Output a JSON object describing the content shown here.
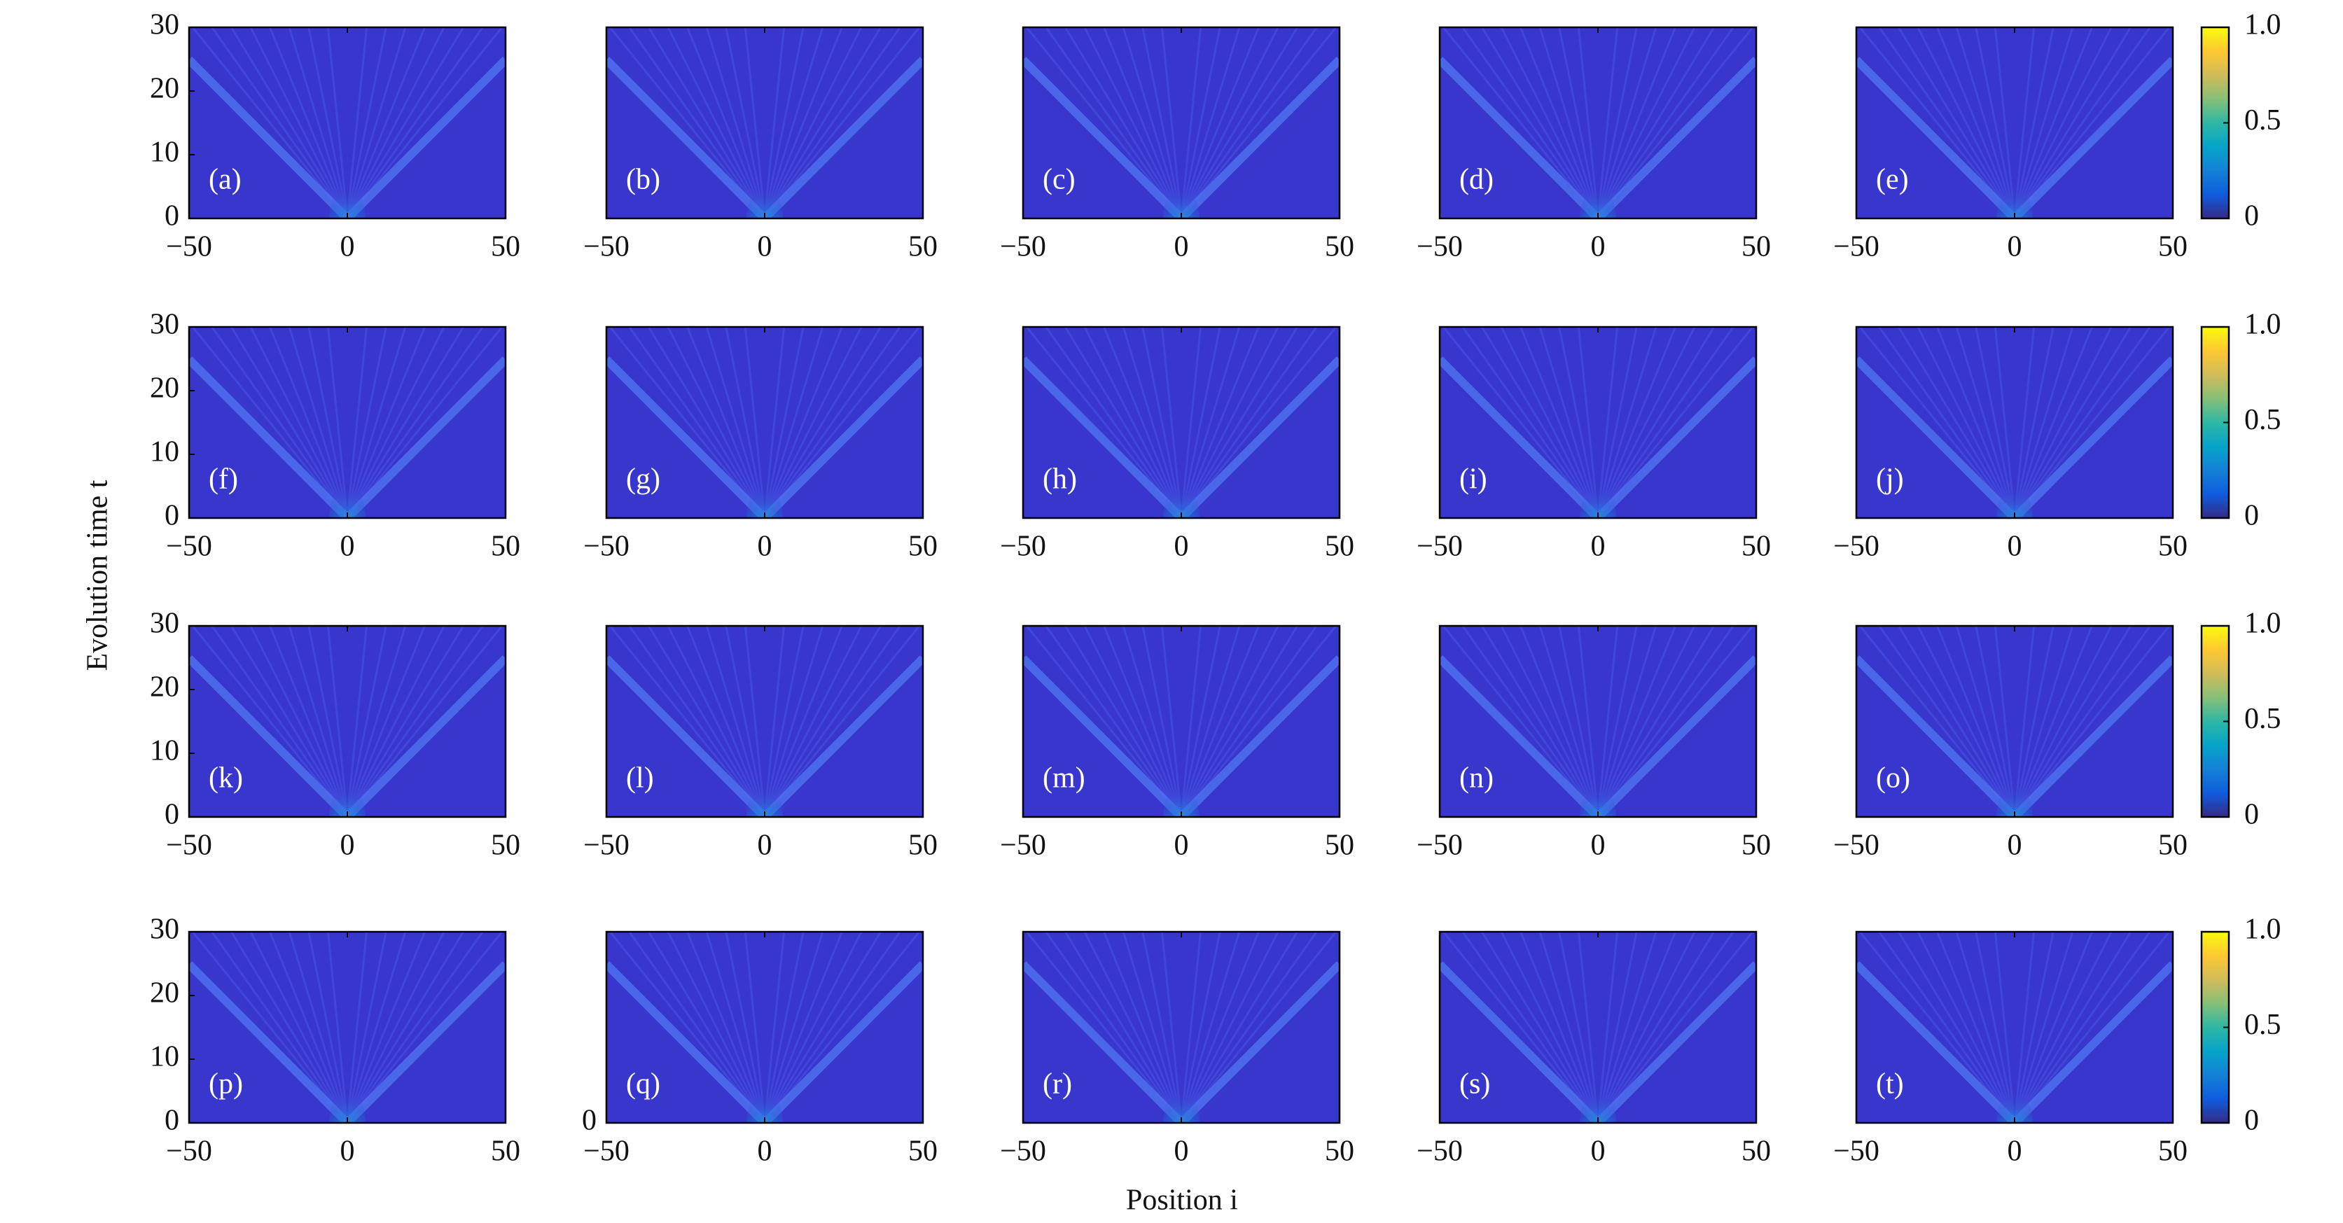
{
  "figure": {
    "xlabel": "Position i",
    "ylabel": "Evolution time t",
    "colormap": [
      "#352a87",
      "#0f5cdd",
      "#1481d6",
      "#06a4ca",
      "#2eb7a4",
      "#87bf77",
      "#d1bb59",
      "#fec832",
      "#f9fb0e"
    ]
  },
  "chart_data": [
    {
      "type": "heatmap",
      "label": "(a)",
      "xlim": [
        -50,
        50
      ],
      "ylim": [
        0,
        30
      ],
      "xticks": [
        {
          "value": -50,
          "label": "−50"
        },
        0,
        50
      ],
      "yticks": [
        0,
        10,
        20,
        30
      ]
    },
    {
      "type": "heatmap",
      "label": "(b)",
      "xlim": [
        -50,
        50
      ],
      "ylim": [
        0,
        30
      ],
      "xticks": [
        {
          "value": -50,
          "label": "−50"
        },
        0,
        50
      ]
    },
    {
      "type": "heatmap",
      "label": "(c)",
      "xlim": [
        -50,
        50
      ],
      "ylim": [
        0,
        30
      ],
      "xticks": [
        {
          "value": -50,
          "label": "−50"
        },
        0,
        50
      ]
    },
    {
      "type": "heatmap",
      "label": "(d)",
      "xlim": [
        -50,
        50
      ],
      "ylim": [
        0,
        30
      ],
      "xticks": [
        {
          "value": -50,
          "label": "−50"
        },
        0,
        50
      ]
    },
    {
      "type": "heatmap",
      "label": "(e)",
      "xlim": [
        -50,
        50
      ],
      "ylim": [
        0,
        30
      ],
      "xticks": [
        {
          "value": -50,
          "label": "−50"
        },
        0,
        50
      ]
    },
    {
      "type": "colorbar",
      "clim": [
        0,
        1
      ],
      "ticks": [
        0,
        0.5,
        {
          "value": 1,
          "label": "1.0"
        }
      ]
    },
    {
      "type": "heatmap",
      "label": "(f)",
      "xlim": [
        -50,
        50
      ],
      "ylim": [
        0,
        30
      ],
      "xticks": [
        {
          "value": -50,
          "label": "−50"
        },
        0,
        50
      ],
      "yticks": [
        0,
        10,
        20,
        30
      ]
    },
    {
      "type": "heatmap",
      "label": "(g)",
      "xlim": [
        -50,
        50
      ],
      "ylim": [
        0,
        30
      ],
      "xticks": [
        {
          "value": -50,
          "label": "−50"
        },
        0,
        50
      ]
    },
    {
      "type": "heatmap",
      "label": "(h)",
      "xlim": [
        -50,
        50
      ],
      "ylim": [
        0,
        30
      ],
      "xticks": [
        {
          "value": -50,
          "label": "−50"
        },
        0,
        50
      ]
    },
    {
      "type": "heatmap",
      "label": "(i)",
      "xlim": [
        -50,
        50
      ],
      "ylim": [
        0,
        30
      ],
      "xticks": [
        {
          "value": -50,
          "label": "−50"
        },
        0,
        50
      ]
    },
    {
      "type": "heatmap",
      "label": "(j)",
      "xlim": [
        -50,
        50
      ],
      "ylim": [
        0,
        30
      ],
      "xticks": [
        {
          "value": -50,
          "label": "−50"
        },
        0,
        50
      ]
    },
    {
      "type": "colorbar",
      "clim": [
        0,
        1
      ],
      "ticks": [
        0,
        0.5,
        {
          "value": 1,
          "label": "1.0"
        }
      ]
    },
    {
      "type": "heatmap",
      "label": "(k)",
      "xlim": [
        -50,
        50
      ],
      "ylim": [
        0,
        30
      ],
      "xticks": [
        {
          "value": -50,
          "label": "−50"
        },
        0,
        50
      ],
      "yticks": [
        0,
        10,
        20,
        30
      ]
    },
    {
      "type": "heatmap",
      "label": "(l)",
      "xlim": [
        -50,
        50
      ],
      "ylim": [
        0,
        30
      ],
      "xticks": [
        {
          "value": -50,
          "label": "−50"
        },
        0,
        50
      ]
    },
    {
      "type": "heatmap",
      "label": "(m)",
      "xlim": [
        -50,
        50
      ],
      "ylim": [
        0,
        30
      ],
      "xticks": [
        {
          "value": -50,
          "label": "−50"
        },
        0,
        50
      ]
    },
    {
      "type": "heatmap",
      "label": "(n)",
      "xlim": [
        -50,
        50
      ],
      "ylim": [
        0,
        30
      ],
      "xticks": [
        {
          "value": -50,
          "label": "−50"
        },
        0,
        50
      ]
    },
    {
      "type": "heatmap",
      "label": "(o)",
      "xlim": [
        -50,
        50
      ],
      "ylim": [
        0,
        30
      ],
      "xticks": [
        {
          "value": -50,
          "label": "−50"
        },
        0,
        50
      ]
    },
    {
      "type": "colorbar",
      "clim": [
        0,
        1
      ],
      "ticks": [
        0,
        0.5,
        {
          "value": 1,
          "label": "1.0"
        }
      ]
    },
    {
      "type": "heatmap",
      "label": "(p)",
      "xlim": [
        -50,
        50
      ],
      "ylim": [
        0,
        30
      ],
      "xticks": [
        {
          "value": -50,
          "label": "−50"
        },
        0,
        50
      ],
      "yticks": [
        0,
        10,
        20,
        30
      ]
    },
    {
      "type": "heatmap",
      "label": "(q)",
      "xlim": [
        -50,
        50
      ],
      "ylim": [
        0,
        30
      ],
      "xticks": [
        {
          "value": -50,
          "label": "−50"
        },
        0,
        50
      ],
      "yticks": [
        0
      ]
    },
    {
      "type": "heatmap",
      "label": "(r)",
      "xlim": [
        -50,
        50
      ],
      "ylim": [
        0,
        30
      ],
      "xticks": [
        {
          "value": -50,
          "label": "−50"
        },
        0,
        50
      ]
    },
    {
      "type": "heatmap",
      "label": "(s)",
      "xlim": [
        -50,
        50
      ],
      "ylim": [
        0,
        30
      ],
      "xticks": [
        {
          "value": -50,
          "label": "−50"
        },
        0,
        50
      ]
    },
    {
      "type": "heatmap",
      "label": "(t)",
      "xlim": [
        -50,
        50
      ],
      "ylim": [
        0,
        30
      ],
      "xticks": [
        {
          "value": -50,
          "label": "−50"
        },
        0,
        50
      ]
    },
    {
      "type": "colorbar",
      "clim": [
        0,
        1
      ],
      "ticks": [
        0,
        0.5,
        {
          "value": 1,
          "label": "1.0"
        }
      ]
    }
  ]
}
